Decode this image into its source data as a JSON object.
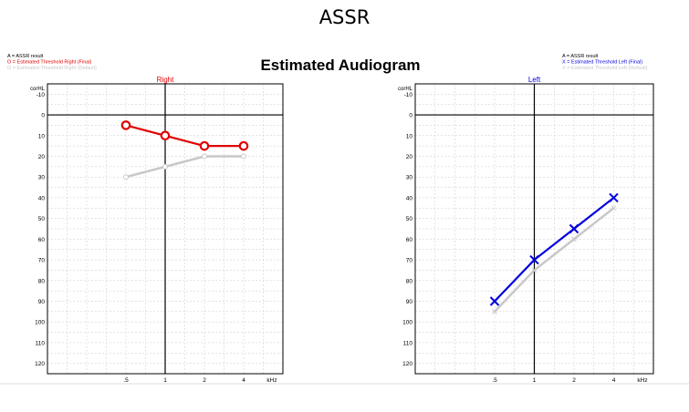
{
  "page": {
    "title": "ASSR",
    "chart_heading": "Estimated Audiogram"
  },
  "legend_right": [
    {
      "text": "A = ASSR result",
      "color": "#000000"
    },
    {
      "text": "O = Estimated Threshold Right (Final)",
      "color": "#e00000"
    },
    {
      "text": "O = Estimated Threshold Right (Default)",
      "color": "#c8c8c8"
    }
  ],
  "legend_left": [
    {
      "text": "A = ASSR result",
      "color": "#000000"
    },
    {
      "text": "X = Estimated Threshold Left (Final)",
      "color": "#0000e0"
    },
    {
      "text": "X = Estimated Threshold Left (Default)",
      "color": "#c8c8c8"
    }
  ],
  "colors": {
    "right_final": "#e00000",
    "left_final": "#0000e0",
    "default": "#c8c8c8",
    "grid": "#c8c8c8",
    "axis": "#000000"
  },
  "chart_data": [
    {
      "type": "line",
      "title": "Right",
      "ylabel": "corHL",
      "xlabel": "kHz",
      "x_scale": "log",
      "x_ticks": [
        {
          "value": 0.5,
          "label": ".5"
        },
        {
          "value": 1,
          "label": "1"
        },
        {
          "value": 2,
          "label": "2"
        },
        {
          "value": 4,
          "label": "4"
        }
      ],
      "ylim": [
        -15,
        125
      ],
      "y_inverted": true,
      "y_ticks": [
        -10,
        0,
        10,
        20,
        30,
        40,
        50,
        60,
        70,
        80,
        90,
        100,
        110,
        120
      ],
      "grid": true,
      "marker": "circle",
      "series": [
        {
          "role": "final",
          "x": [
            0.5,
            1,
            2,
            4
          ],
          "y": [
            5,
            10,
            15,
            15
          ]
        },
        {
          "role": "default",
          "x": [
            0.5,
            1,
            2,
            4
          ],
          "y": [
            30,
            25,
            20,
            20
          ]
        }
      ]
    },
    {
      "type": "line",
      "title": "Left",
      "ylabel": "corHL",
      "xlabel": "kHz",
      "x_scale": "log",
      "x_ticks": [
        {
          "value": 0.5,
          "label": ".5"
        },
        {
          "value": 1,
          "label": "1"
        },
        {
          "value": 2,
          "label": "2"
        },
        {
          "value": 4,
          "label": "4"
        }
      ],
      "ylim": [
        -15,
        125
      ],
      "y_inverted": true,
      "y_ticks": [
        -10,
        0,
        10,
        20,
        30,
        40,
        50,
        60,
        70,
        80,
        90,
        100,
        110,
        120
      ],
      "grid": true,
      "marker": "x",
      "series": [
        {
          "role": "final",
          "x": [
            0.5,
            1,
            2,
            4
          ],
          "y": [
            90,
            70,
            55,
            40
          ]
        },
        {
          "role": "default",
          "x": [
            0.5,
            1,
            2,
            4
          ],
          "y": [
            95,
            75,
            60,
            45
          ]
        }
      ]
    }
  ]
}
